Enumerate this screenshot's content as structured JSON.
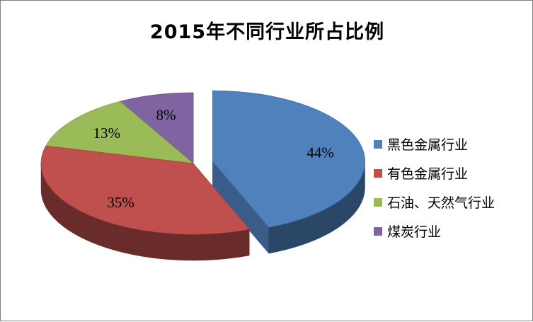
{
  "chart_data": {
    "type": "pie",
    "title": "2015年不同行业所占比例",
    "categories": [
      "黑色金属行业",
      "有色金属行业",
      "石油、天然气行业",
      "煤炭行业"
    ],
    "values": [
      44,
      35,
      13,
      8
    ],
    "labels": [
      "44%",
      "35%",
      "13%",
      "8%"
    ],
    "colors": [
      "#4F81BD",
      "#C0504D",
      "#9BBB59",
      "#8064A2"
    ],
    "exploded": [
      true,
      false,
      false,
      false
    ],
    "style": "3d-pie",
    "legend_position": "right"
  }
}
